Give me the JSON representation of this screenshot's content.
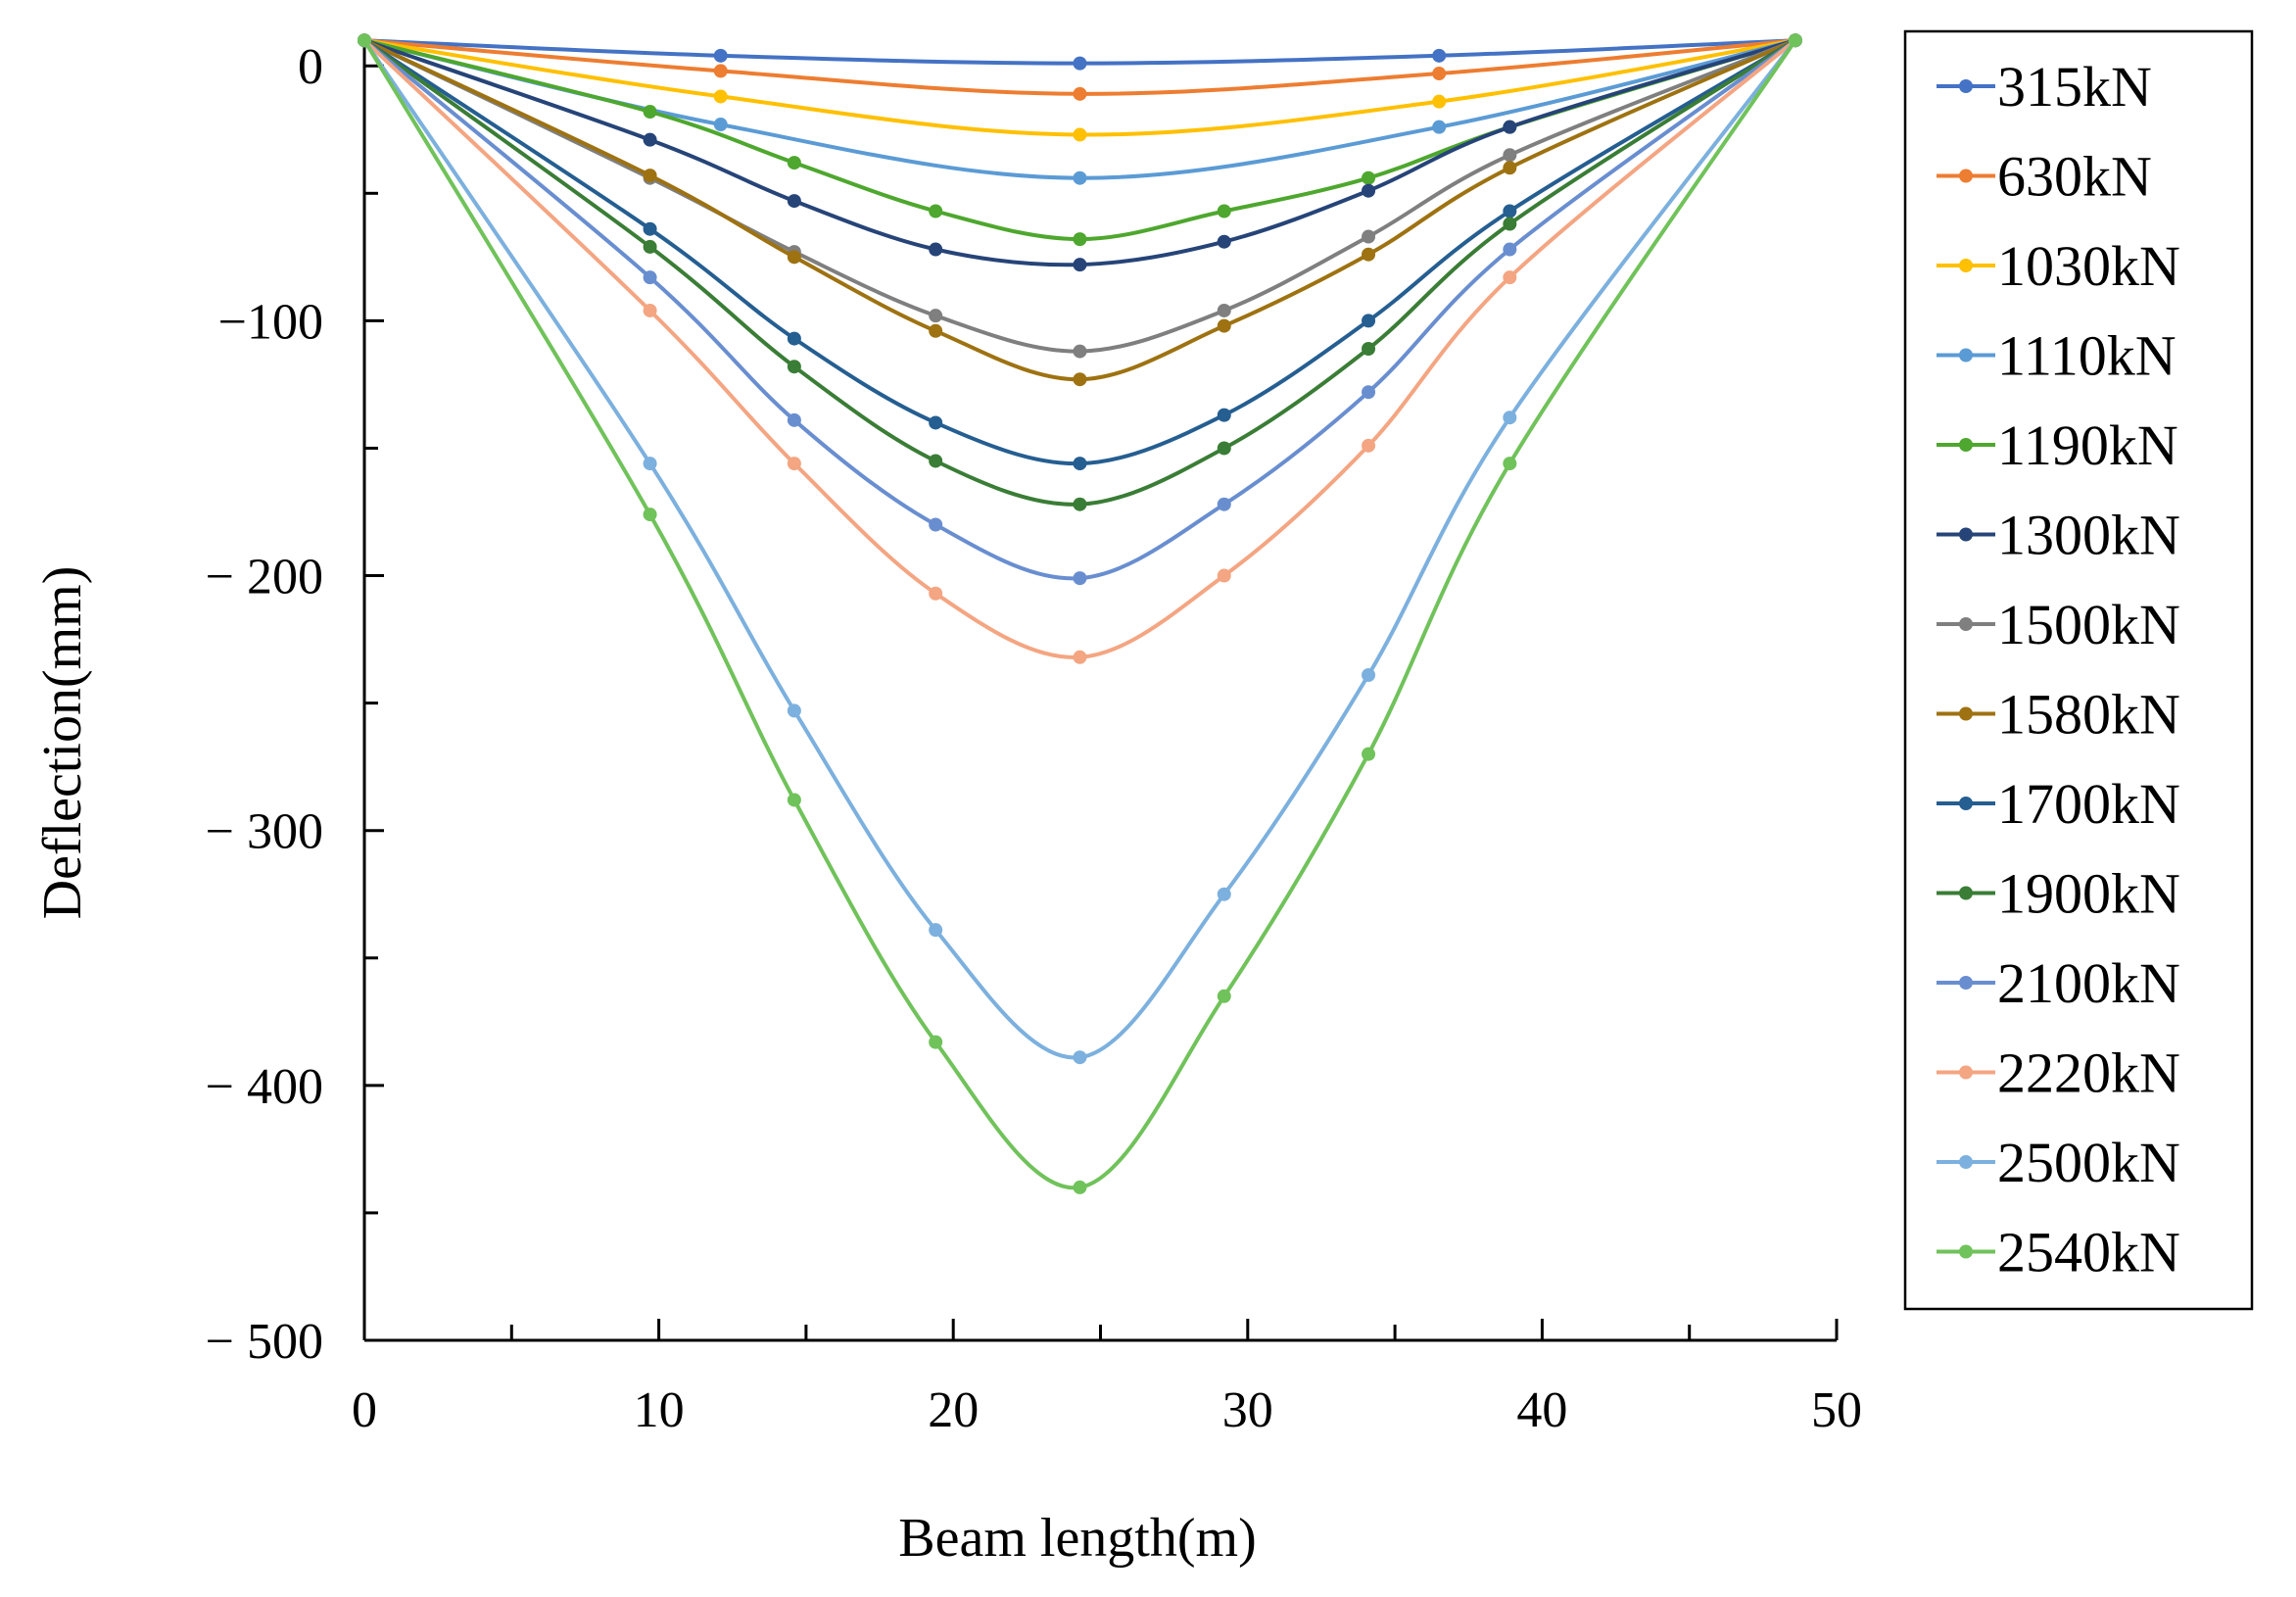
{
  "chart_data": {
    "type": "line",
    "title": "",
    "xlabel": "Beam length(m)",
    "ylabel": "Deflection(mm)",
    "xlim": [
      0,
      50
    ],
    "ylim": [
      -500,
      12
    ],
    "x_ticks": [
      0,
      10,
      20,
      30,
      40,
      50
    ],
    "x_tick_labels": [
      "0",
      "10",
      "20",
      "30",
      "40",
      "50"
    ],
    "y_ticks": [
      0,
      -100,
      -200,
      -300,
      -400,
      -500
    ],
    "y_tick_labels": [
      "0",
      "−100",
      "− 200",
      "− 300",
      "− 400",
      "− 500"
    ],
    "grid": false,
    "legend_position": "right",
    "series": [
      {
        "name": "315kN",
        "color": "#4472C4",
        "x": [
          0,
          12.1,
          24.3,
          36.5,
          48.6
        ],
        "y": [
          10,
          4,
          1,
          4,
          10
        ]
      },
      {
        "name": "630kN",
        "color": "#ED7D31",
        "x": [
          0,
          12.1,
          24.3,
          36.5,
          48.6
        ],
        "y": [
          10,
          -2,
          -11,
          -3,
          10
        ]
      },
      {
        "name": "1030kN",
        "color": "#FFC000",
        "x": [
          0,
          12.1,
          24.3,
          36.5,
          48.6
        ],
        "y": [
          10,
          -12,
          -27,
          -14,
          10
        ]
      },
      {
        "name": "1110kN",
        "color": "#5B9BD5",
        "x": [
          0,
          12.1,
          24.3,
          36.5,
          48.6
        ],
        "y": [
          10,
          -23,
          -44,
          -24,
          10
        ]
      },
      {
        "name": "1190kN",
        "color": "#4EA72E",
        "x": [
          0,
          9.7,
          14.6,
          19.4,
          24.3,
          29.2,
          34.1,
          38.9,
          48.6
        ],
        "y": [
          10,
          -18,
          -38,
          -57,
          -68,
          -57,
          -44,
          -24,
          10
        ]
      },
      {
        "name": "1300kN",
        "color": "#264478",
        "x": [
          0,
          9.7,
          14.6,
          19.4,
          24.3,
          29.2,
          34.1,
          38.9,
          48.6
        ],
        "y": [
          10,
          -29,
          -53,
          -72,
          -78,
          -69,
          -49,
          -24,
          10
        ]
      },
      {
        "name": "1500kN",
        "color": "#7F7F7F",
        "x": [
          0,
          9.7,
          14.6,
          19.4,
          24.3,
          29.2,
          34.1,
          38.9,
          48.6
        ],
        "y": [
          10,
          -44,
          -73,
          -98,
          -112,
          -96,
          -67,
          -35,
          10
        ]
      },
      {
        "name": "1580kN",
        "color": "#9E7211",
        "x": [
          0,
          9.7,
          14.6,
          19.4,
          24.3,
          29.2,
          34.1,
          38.9,
          48.6
        ],
        "y": [
          10,
          -43,
          -75,
          -104,
          -123,
          -102,
          -74,
          -40,
          10
        ]
      },
      {
        "name": "1700kN",
        "color": "#255E91",
        "x": [
          0,
          9.7,
          14.6,
          19.4,
          24.3,
          29.2,
          34.1,
          38.9,
          48.6
        ],
        "y": [
          10,
          -64,
          -107,
          -140,
          -156,
          -137,
          -100,
          -57,
          10
        ]
      },
      {
        "name": "1900kN",
        "color": "#3A7D36",
        "x": [
          0,
          9.7,
          14.6,
          19.4,
          24.3,
          29.2,
          34.1,
          38.9,
          48.6
        ],
        "y": [
          10,
          -71,
          -118,
          -155,
          -172,
          -150,
          -111,
          -62,
          10
        ]
      },
      {
        "name": "2100kN",
        "color": "#698ED0",
        "x": [
          0,
          9.7,
          14.6,
          19.4,
          24.3,
          29.2,
          34.1,
          38.9,
          48.6
        ],
        "y": [
          10,
          -83,
          -139,
          -180,
          -201,
          -172,
          -128,
          -72,
          10
        ]
      },
      {
        "name": "2220kN",
        "color": "#F4A582",
        "x": [
          0,
          9.7,
          14.6,
          19.4,
          24.3,
          29.2,
          34.1,
          38.9,
          48.6
        ],
        "y": [
          10,
          -96,
          -156,
          -207,
          -232,
          -200,
          -149,
          -83,
          10
        ]
      },
      {
        "name": "2500kN",
        "color": "#7CB0DE",
        "x": [
          0,
          9.7,
          14.6,
          19.4,
          24.3,
          29.2,
          34.1,
          38.9,
          48.6
        ],
        "y": [
          10,
          -156,
          -253,
          -339,
          -389,
          -325,
          -239,
          -138,
          10
        ]
      },
      {
        "name": "2540kN",
        "color": "#70C25A",
        "x": [
          0,
          9.7,
          14.6,
          19.4,
          24.3,
          29.2,
          34.1,
          38.9,
          48.6
        ],
        "y": [
          10,
          -176,
          -288,
          -383,
          -440,
          -365,
          -270,
          -156,
          10
        ]
      }
    ]
  }
}
